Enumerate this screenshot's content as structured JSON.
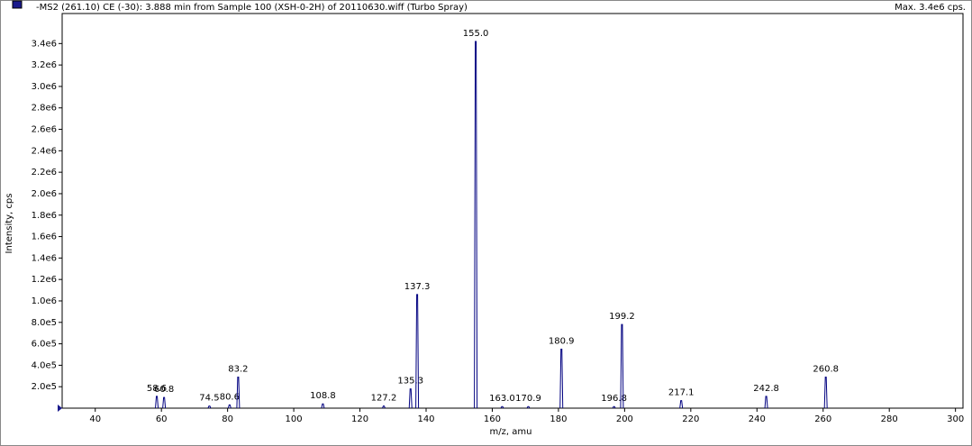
{
  "chart_data": {
    "type": "stick",
    "title": "-MS2 (261.10) CE (-30): 3.888 min from Sample 100 (XSH-0-2H) of 20110630.wiff (Turbo Spray)",
    "max_label": "Max. 3.4e6 cps.",
    "x_label": "m/z, amu",
    "y_label": "Intensity, cps",
    "color": "#000080",
    "x": [
      58.6,
      60.8,
      74.5,
      80.6,
      83.2,
      108.8,
      127.2,
      135.3,
      137.3,
      155.0,
      163.0,
      170.9,
      180.9,
      196.8,
      199.2,
      217.1,
      242.8,
      260.8
    ],
    "x_labels": [
      "58.6",
      "60.8",
      "74.5",
      "80.6",
      "83.2",
      "108.8",
      "127.2",
      "135.3",
      "137.3",
      "155.0",
      "163.0",
      "170.9",
      "180.9",
      "196.8",
      "199.2",
      "217.1",
      "242.8",
      "260.8"
    ],
    "values": [
      110000,
      100000,
      20000,
      30000,
      290000,
      40000,
      20000,
      180000,
      1060000,
      3420000,
      15000,
      15000,
      550000,
      15000,
      780000,
      70000,
      110000,
      290000
    ],
    "xlim": [
      30,
      302
    ],
    "ylim": [
      0,
      3680000
    ],
    "xticks": [
      40,
      60,
      80,
      100,
      120,
      140,
      160,
      180,
      200,
      220,
      240,
      260,
      280,
      300
    ],
    "yticks": [
      {
        "value": 200000,
        "label": "2.0e5"
      },
      {
        "value": 400000,
        "label": "4.0e5"
      },
      {
        "value": 600000,
        "label": "6.0e5"
      },
      {
        "value": 800000,
        "label": "8.0e5"
      },
      {
        "value": 1000000,
        "label": "1.0e6"
      },
      {
        "value": 1200000,
        "label": "1.2e6"
      },
      {
        "value": 1400000,
        "label": "1.4e6"
      },
      {
        "value": 1600000,
        "label": "1.6e6"
      },
      {
        "value": 1800000,
        "label": "1.8e6"
      },
      {
        "value": 2000000,
        "label": "2.0e6"
      },
      {
        "value": 2200000,
        "label": "2.2e6"
      },
      {
        "value": 2400000,
        "label": "2.4e6"
      },
      {
        "value": 2600000,
        "label": "2.6e6"
      },
      {
        "value": 2800000,
        "label": "2.8e6"
      },
      {
        "value": 3000000,
        "label": "3.0e6"
      },
      {
        "value": 3200000,
        "label": "3.2e6"
      },
      {
        "value": 3400000,
        "label": "3.4e6"
      }
    ]
  }
}
